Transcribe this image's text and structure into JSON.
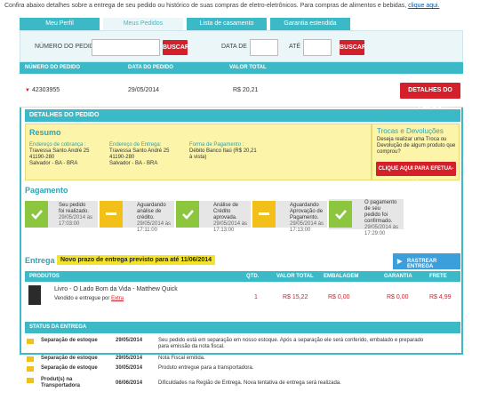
{
  "intro": {
    "text": "Confira abaixo detalhes sobre a entrega de seu pedido ou histórico de suas compras de eletro-eletrônicos. Para compras de alimentos e bebidas, ",
    "link": "clique aqui."
  },
  "tabs": [
    "Meu Perfil",
    "Meus Pedidos",
    "Lista de casamento",
    "Garantia estendida"
  ],
  "search": {
    "numero_label": "NÚMERO DO PEDIDO",
    "buscar1": "BUSCAR",
    "data_label": "DATA DE",
    "ate_label": "ATÉ",
    "buscar2": "BUSCAR"
  },
  "orders_head": {
    "numero": "NÚMERO DO PEDIDO",
    "data": "DATA DO PEDIDO",
    "valor": "VALOR TOTAL"
  },
  "order": {
    "numero": "42303955",
    "data": "29/05/2014",
    "valor": "R$ 20,21",
    "detalhes_btn": "DETALHES DO PEDIDO"
  },
  "detalhes": {
    "header": "DETALHES DO PEDIDO",
    "resumo_title": "Resumo",
    "cobranca_label": "Endereço de cobrança :",
    "cobranca_lines": [
      "Travessa Santo André 25",
      "41190-280",
      "Salvador - BA - BRA"
    ],
    "entrega_label": "Endereço de Entrega:",
    "entrega_lines": [
      "Travessa Santo André 25",
      "41190-280",
      "Salvador - BA - BRA"
    ],
    "pagamento_label": "Forma de Pagamento :",
    "pagamento_lines": [
      "Débito Banco Itaú (R$ 20,21",
      "à vista)"
    ],
    "trocas_title": "Trocas e Devoluções",
    "trocas_text": "Deseja realizar uma Troca ou Devolução de algum produto que comprou?",
    "trocas_btn": "CLIQUE AQUI PARA EFETUA-LA"
  },
  "pagamento": {
    "title": "Pagamento",
    "steps": [
      {
        "color": "green",
        "text": [
          "Seu pedido",
          "foi realizado."
        ],
        "date": [
          "29/05/2014 às",
          "17:03:00"
        ]
      },
      {
        "color": "yellow",
        "text": [
          "Aguardando",
          "análise de",
          "crédito."
        ],
        "date": [
          "29/05/2014 às",
          "17:11:00"
        ]
      },
      {
        "color": "green",
        "text": [
          "Análise de",
          "Crédito",
          "aprovada."
        ],
        "date": [
          "29/05/2014 às",
          "17:13:00"
        ]
      },
      {
        "color": "yellow",
        "text": [
          "Aguardando",
          "Aprovação de",
          "Pagamento."
        ],
        "date": [
          "29/05/2014 às",
          "17:13:00"
        ]
      },
      {
        "color": "green",
        "text": [
          "O pagamento",
          "de seu",
          "pedido foi",
          "confirmado."
        ],
        "date": [
          "29/05/2014 às",
          "17:29:00"
        ]
      }
    ]
  },
  "entrega": {
    "title": "Entrega",
    "badge": "Novo prazo de entrega previsto para até 11/06/2014",
    "rastrear_btn": "RASTREAR ENTREGA"
  },
  "produtos": {
    "head": {
      "produtos": "PRODUTOS",
      "qtd": "QTD.",
      "valor": "VALOR TOTAL",
      "embalagem": "EMBALAGEM",
      "garantia": "GARANTIA",
      "frete": "FRETE"
    },
    "item": {
      "nome": "Livro - O Lado Bom da Vida - Matthew Quick",
      "vendido_text": "Vendido e entregue por ",
      "vendido_link": "Extra",
      "qtd": "1",
      "valor": "R$ 15,22",
      "embalagem": "R$ 0,00",
      "garantia": "R$ 0,00",
      "frete": "R$ 4,99"
    }
  },
  "status": {
    "head": "STATUS DA ENTREGA",
    "rows": [
      {
        "label": "Separação de estoque",
        "date": "29/05/2014",
        "desc": [
          "Seu pedido está em separação em nosso estoque. Após a separação ele será conferido, embalado e preparado",
          "para emissão da nota fiscal."
        ]
      },
      {
        "label": "Separação de estoque",
        "date": "29/05/2014",
        "desc": [
          "Nota Fiscal emitida."
        ]
      },
      {
        "label": "Separação de estoque",
        "date": "30/05/2014",
        "desc": [
          "Produto entregue para a transportadora."
        ]
      },
      {
        "label": "Produt(s) na Transportadora",
        "date": "06/06/2014",
        "desc": [
          "Dificuldades na Região de Entrega. Nova tentativa de entrega será realizada."
        ]
      }
    ]
  },
  "colors": {
    "teal": "#3bb9c7",
    "red": "#d4202a",
    "green": "#8cc63f",
    "yellow": "#f3c019",
    "notice": "#fbf4a9"
  }
}
